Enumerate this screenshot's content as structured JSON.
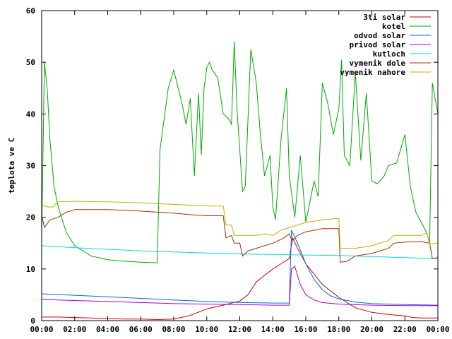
{
  "chart_data": {
    "type": "line",
    "title": "",
    "xlabel": "",
    "ylabel": "teplota ve C",
    "xlim": [
      "00:00",
      "00:00"
    ],
    "ylim": [
      0,
      60
    ],
    "x_ticks": [
      "00:00",
      "02:00",
      "04:00",
      "06:00",
      "08:00",
      "10:00",
      "12:00",
      "14:00",
      "16:00",
      "18:00",
      "20:00",
      "22:00",
      "00:00"
    ],
    "y_ticks": [
      0,
      10,
      20,
      30,
      40,
      50,
      60
    ],
    "grid": false,
    "legend_position": "top-right",
    "series": [
      {
        "name": "3ti solar",
        "color": "#cc0000",
        "points": [
          [
            "00:00",
            0.7
          ],
          [
            "01:00",
            0.7
          ],
          [
            "02:00",
            0.6
          ],
          [
            "03:00",
            0.5
          ],
          [
            "04:00",
            0.4
          ],
          [
            "05:00",
            0.3
          ],
          [
            "06:00",
            0.3
          ],
          [
            "07:00",
            0.2
          ],
          [
            "08:00",
            0.3
          ],
          [
            "09:00",
            1.0
          ],
          [
            "10:00",
            2.3
          ],
          [
            "11:00",
            3.0
          ],
          [
            "12:00",
            3.8
          ],
          [
            "12:30",
            5.0
          ],
          [
            "13:00",
            7.5
          ],
          [
            "14:00",
            10.0
          ],
          [
            "14:30",
            11.0
          ],
          [
            "15:00",
            12.0
          ],
          [
            "15:12",
            16.0
          ],
          [
            "15:30",
            14.0
          ],
          [
            "16:00",
            11.0
          ],
          [
            "17:00",
            7.0
          ],
          [
            "18:00",
            4.5
          ],
          [
            "19:00",
            2.5
          ],
          [
            "20:00",
            1.6
          ],
          [
            "21:00",
            1.2
          ],
          [
            "22:00",
            0.9
          ],
          [
            "22:30",
            0.6
          ],
          [
            "23:00",
            0.5
          ],
          [
            "24:00",
            0.5
          ]
        ]
      },
      {
        "name": "kotel",
        "color": "#00aa00",
        "points": [
          [
            "00:00",
            16.0
          ],
          [
            "00:10",
            50.0
          ],
          [
            "00:20",
            45.0
          ],
          [
            "00:30",
            35.0
          ],
          [
            "00:45",
            26.0
          ],
          [
            "01:00",
            22.0
          ],
          [
            "01:30",
            17.0
          ],
          [
            "02:00",
            14.5
          ],
          [
            "03:00",
            12.5
          ],
          [
            "04:00",
            11.8
          ],
          [
            "05:00",
            11.5
          ],
          [
            "06:00",
            11.3
          ],
          [
            "07:00",
            11.2
          ],
          [
            "07:10",
            33.0
          ],
          [
            "07:40",
            45.0
          ],
          [
            "08:00",
            48.5
          ],
          [
            "08:30",
            42.0
          ],
          [
            "08:45",
            38.0
          ],
          [
            "09:00",
            43.0
          ],
          [
            "09:15",
            28.0
          ],
          [
            "09:30",
            44.0
          ],
          [
            "09:40",
            32.0
          ],
          [
            "09:50",
            45.0
          ],
          [
            "10:00",
            49.0
          ],
          [
            "10:10",
            50.0
          ],
          [
            "10:20",
            48.5
          ],
          [
            "10:40",
            47.0
          ],
          [
            "11:00",
            40.0
          ],
          [
            "11:20",
            39.0
          ],
          [
            "11:30",
            38.0
          ],
          [
            "11:40",
            54.0
          ],
          [
            "11:50",
            41.0
          ],
          [
            "12:10",
            25.0
          ],
          [
            "12:20",
            26.0
          ],
          [
            "12:40",
            52.5
          ],
          [
            "13:00",
            46.0
          ],
          [
            "13:15",
            36.0
          ],
          [
            "13:30",
            28.0
          ],
          [
            "13:50",
            32.0
          ],
          [
            "14:00",
            22.0
          ],
          [
            "14:10",
            19.5
          ],
          [
            "14:30",
            35.0
          ],
          [
            "14:50",
            45.0
          ],
          [
            "15:00",
            28.0
          ],
          [
            "15:20",
            20.0
          ],
          [
            "15:40",
            32.0
          ],
          [
            "16:00",
            19.0
          ],
          [
            "16:15",
            23.0
          ],
          [
            "16:30",
            27.0
          ],
          [
            "16:45",
            24.0
          ],
          [
            "17:00",
            46.0
          ],
          [
            "17:20",
            42.0
          ],
          [
            "17:40",
            36.0
          ],
          [
            "18:00",
            41.0
          ],
          [
            "18:10",
            50.5
          ],
          [
            "18:20",
            32.0
          ],
          [
            "18:40",
            30.0
          ],
          [
            "19:00",
            48.0
          ],
          [
            "19:20",
            31.0
          ],
          [
            "19:40",
            44.0
          ],
          [
            "20:00",
            27.0
          ],
          [
            "20:20",
            26.5
          ],
          [
            "20:45",
            28.0
          ],
          [
            "21:00",
            30.0
          ],
          [
            "21:30",
            30.5
          ],
          [
            "22:00",
            36.0
          ],
          [
            "22:20",
            26.0
          ],
          [
            "22:40",
            21.0
          ],
          [
            "23:00",
            19.0
          ],
          [
            "23:20",
            17.0
          ],
          [
            "23:30",
            15.0
          ],
          [
            "23:40",
            46.0
          ],
          [
            "24:00",
            40.0
          ]
        ]
      },
      {
        "name": "odvod solar",
        "color": "#0066dd",
        "points": [
          [
            "00:00",
            5.2
          ],
          [
            "02:00",
            4.9
          ],
          [
            "04:00",
            4.6
          ],
          [
            "06:00",
            4.3
          ],
          [
            "08:00",
            4.0
          ],
          [
            "10:00",
            3.7
          ],
          [
            "12:00",
            3.5
          ],
          [
            "14:00",
            3.4
          ],
          [
            "15:00",
            3.4
          ],
          [
            "15:08",
            17.5
          ],
          [
            "15:30",
            15.0
          ],
          [
            "16:00",
            11.0
          ],
          [
            "16:30",
            8.0
          ],
          [
            "17:00",
            6.0
          ],
          [
            "17:30",
            4.8
          ],
          [
            "18:00",
            4.2
          ],
          [
            "19:00",
            3.6
          ],
          [
            "20:00",
            3.3
          ],
          [
            "22:00",
            3.1
          ],
          [
            "24:00",
            3.0
          ]
        ]
      },
      {
        "name": "privod solar",
        "color": "#aa00cc",
        "points": [
          [
            "00:00",
            4.1
          ],
          [
            "02:00",
            3.9
          ],
          [
            "04:00",
            3.7
          ],
          [
            "06:00",
            3.5
          ],
          [
            "08:00",
            3.3
          ],
          [
            "10:00",
            3.2
          ],
          [
            "12:00",
            3.1
          ],
          [
            "14:00",
            3.0
          ],
          [
            "15:00",
            3.0
          ],
          [
            "15:08",
            10.0
          ],
          [
            "15:20",
            10.5
          ],
          [
            "15:40",
            7.0
          ],
          [
            "16:00",
            5.0
          ],
          [
            "16:30",
            4.0
          ],
          [
            "17:00",
            3.5
          ],
          [
            "18:00",
            3.2
          ],
          [
            "20:00",
            3.0
          ],
          [
            "22:00",
            2.9
          ],
          [
            "24:00",
            2.9
          ]
        ]
      },
      {
        "name": "kutloch",
        "color": "#00dddd",
        "points": [
          [
            "00:00",
            14.5
          ],
          [
            "02:00",
            14.1
          ],
          [
            "04:00",
            13.8
          ],
          [
            "06:00",
            13.5
          ],
          [
            "08:00",
            13.3
          ],
          [
            "10:00",
            13.1
          ],
          [
            "12:00",
            12.9
          ],
          [
            "14:00",
            12.8
          ],
          [
            "16:00",
            12.7
          ],
          [
            "18:00",
            12.6
          ],
          [
            "20:00",
            12.4
          ],
          [
            "22:00",
            12.2
          ],
          [
            "24:00",
            12.0
          ]
        ]
      },
      {
        "name": "vymenik dole",
        "color": "#993300",
        "points": [
          [
            "00:00",
            20.5
          ],
          [
            "00:10",
            18.0
          ],
          [
            "00:30",
            19.5
          ],
          [
            "01:00",
            20.0
          ],
          [
            "01:30",
            21.0
          ],
          [
            "02:00",
            21.5
          ],
          [
            "04:00",
            21.5
          ],
          [
            "06:00",
            21.2
          ],
          [
            "07:00",
            21.0
          ],
          [
            "08:00",
            20.8
          ],
          [
            "09:00",
            20.5
          ],
          [
            "10:00",
            20.3
          ],
          [
            "11:00",
            20.3
          ],
          [
            "11:10",
            16.0
          ],
          [
            "11:30",
            16.5
          ],
          [
            "11:40",
            15.0
          ],
          [
            "12:00",
            15.0
          ],
          [
            "12:10",
            12.5
          ],
          [
            "12:30",
            13.5
          ],
          [
            "13:00",
            14.0
          ],
          [
            "14:00",
            15.0
          ],
          [
            "14:40",
            16.0
          ],
          [
            "15:00",
            16.8
          ],
          [
            "15:10",
            15.5
          ],
          [
            "15:30",
            16.5
          ],
          [
            "16:00",
            17.2
          ],
          [
            "17:00",
            17.8
          ],
          [
            "18:00",
            17.8
          ],
          [
            "18:05",
            11.3
          ],
          [
            "18:30",
            11.5
          ],
          [
            "19:00",
            12.5
          ],
          [
            "20:00",
            13.0
          ],
          [
            "21:00",
            14.0
          ],
          [
            "21:20",
            15.0
          ],
          [
            "22:00",
            15.2
          ],
          [
            "23:00",
            15.3
          ],
          [
            "23:30",
            15.0
          ],
          [
            "23:40",
            12.0
          ],
          [
            "24:00",
            12.2
          ]
        ]
      },
      {
        "name": "vymenik nahore",
        "color": "#ccaa00",
        "points": [
          [
            "00:00",
            22.5
          ],
          [
            "00:20",
            22.0
          ],
          [
            "00:40",
            22.0
          ],
          [
            "01:00",
            23.0
          ],
          [
            "02:00",
            23.1
          ],
          [
            "04:00",
            23.0
          ],
          [
            "06:00",
            22.8
          ],
          [
            "08:00",
            22.5
          ],
          [
            "10:00",
            22.2
          ],
          [
            "11:00",
            22.2
          ],
          [
            "11:10",
            18.5
          ],
          [
            "11:30",
            18.5
          ],
          [
            "11:40",
            16.5
          ],
          [
            "13:00",
            16.5
          ],
          [
            "13:30",
            16.8
          ],
          [
            "14:00",
            16.5
          ],
          [
            "14:30",
            17.5
          ],
          [
            "15:00",
            18.0
          ],
          [
            "16:00",
            19.0
          ],
          [
            "17:00",
            19.5
          ],
          [
            "18:00",
            19.8
          ],
          [
            "18:05",
            14.0
          ],
          [
            "19:00",
            14.0
          ],
          [
            "20:00",
            14.5
          ],
          [
            "21:00",
            15.5
          ],
          [
            "21:20",
            16.5
          ],
          [
            "22:00",
            16.5
          ],
          [
            "23:00",
            16.5
          ],
          [
            "23:20",
            17.0
          ],
          [
            "23:30",
            14.8
          ],
          [
            "24:00",
            15.0
          ]
        ]
      }
    ]
  }
}
